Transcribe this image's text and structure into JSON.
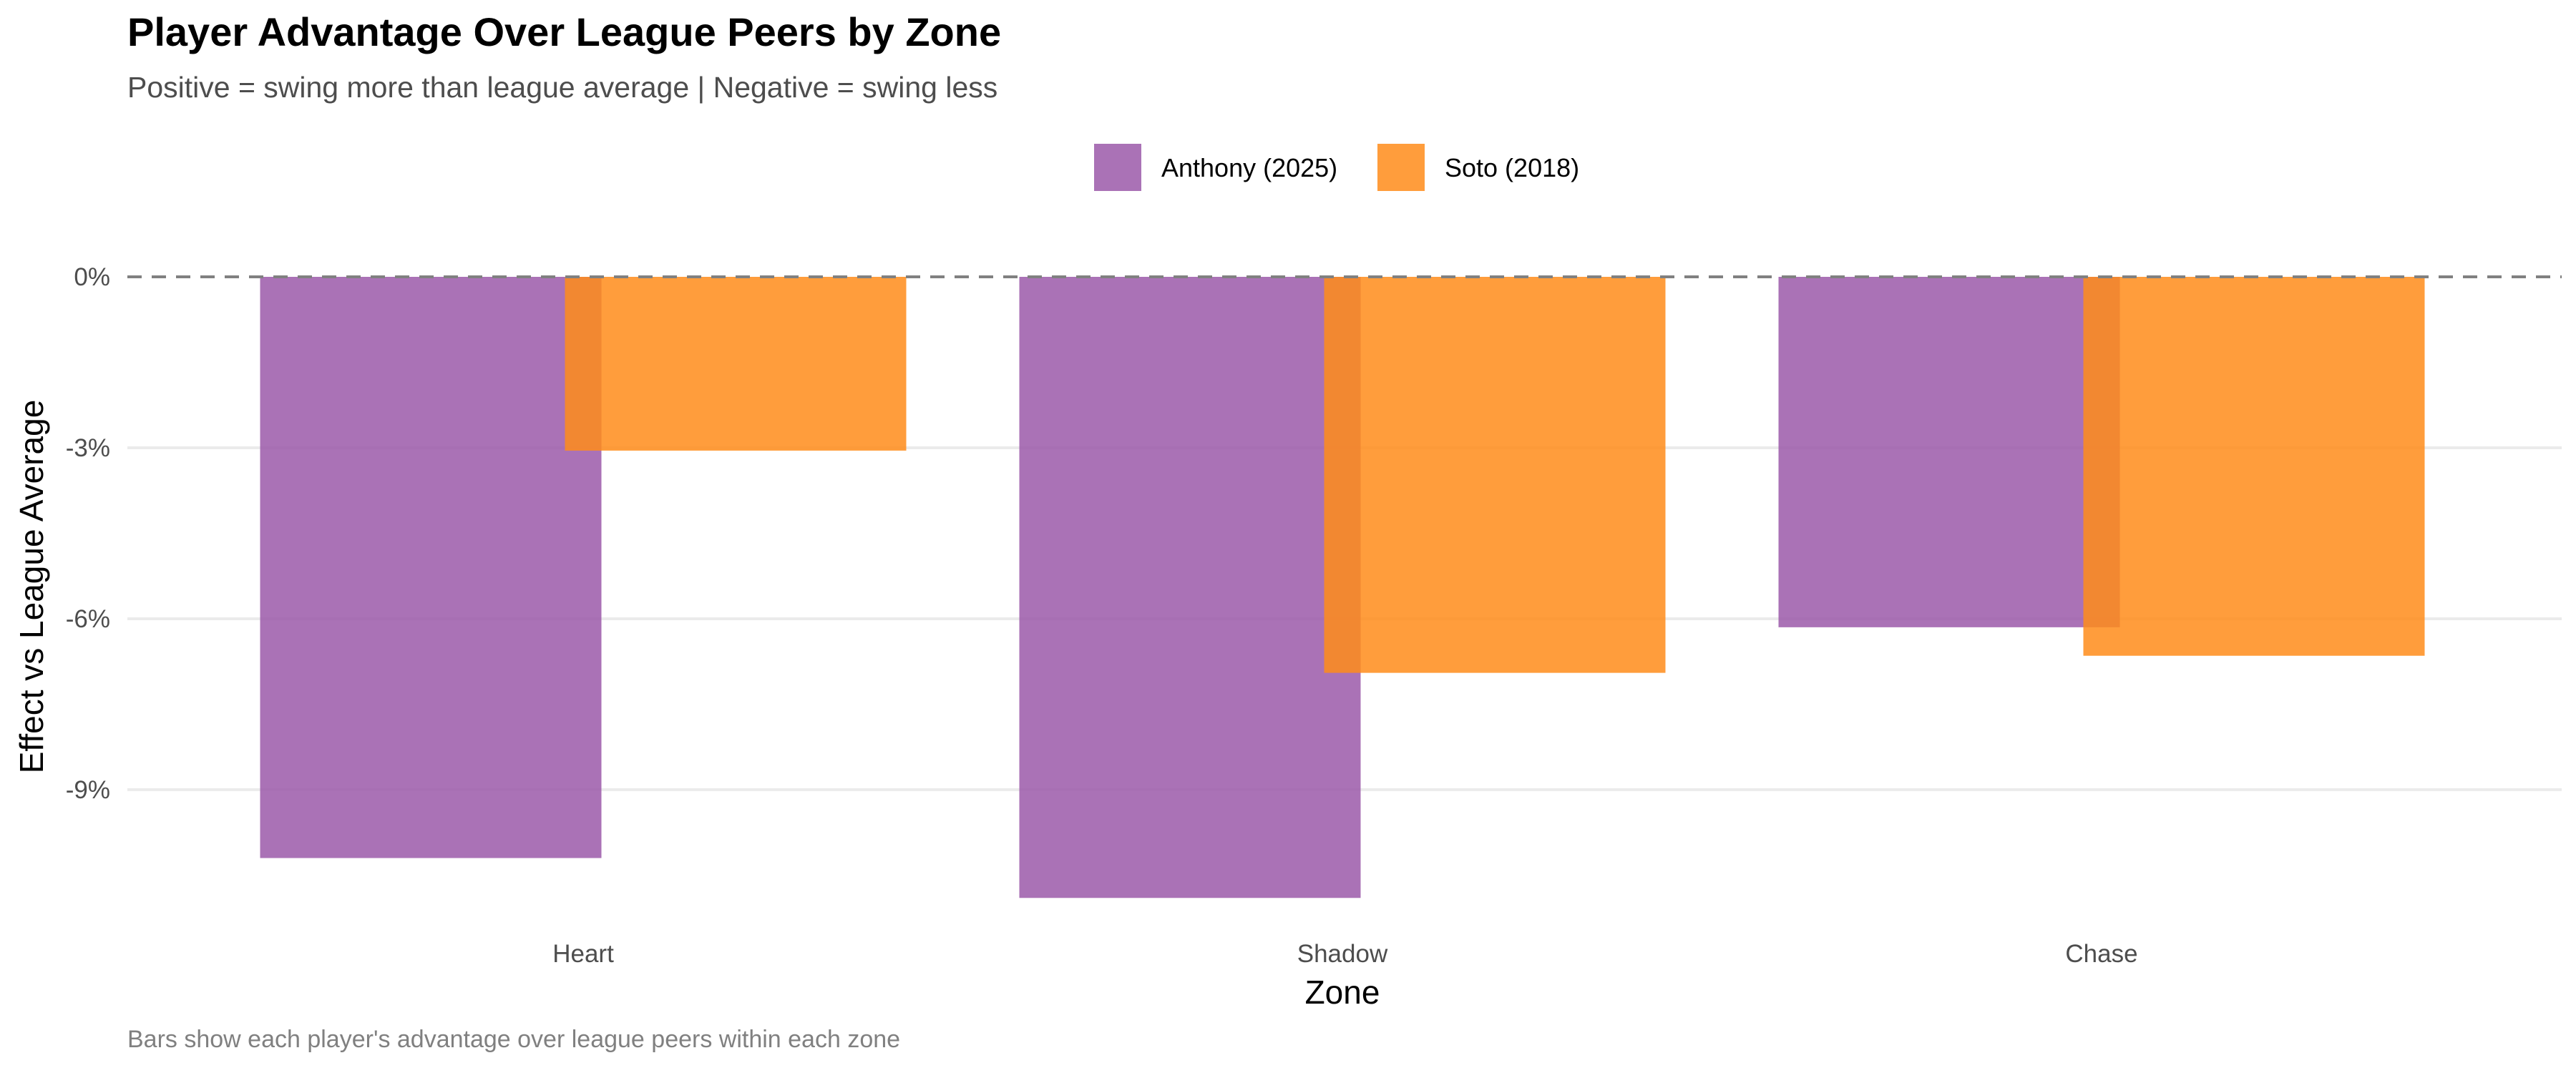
{
  "chart_data": {
    "type": "bar",
    "title": "Player Advantage Over League Peers by Zone",
    "subtitle": "Positive = swing more than league average | Negative = swing less",
    "caption": "Bars show each player's advantage over league peers within each zone",
    "xlabel": "Zone",
    "ylabel": "Effect vs League Average",
    "categories": [
      "Heart",
      "Shadow",
      "Chase"
    ],
    "series": [
      {
        "name": "Anthony (2025)",
        "color": "#9b59a9",
        "values": [
          -10.2,
          -10.9,
          -6.15
        ]
      },
      {
        "name": "Soto (2018)",
        "color": "#ff8c1a",
        "values": [
          -3.05,
          -6.95,
          -6.65
        ]
      }
    ],
    "ylim": [
      -11.65,
      0
    ],
    "yticks": [
      0,
      -3,
      -6,
      -9
    ],
    "ytick_labels": [
      "0%",
      "-3%",
      "-6%",
      "-9%"
    ],
    "reference_line": 0,
    "grid": true,
    "legend_position": "top"
  }
}
